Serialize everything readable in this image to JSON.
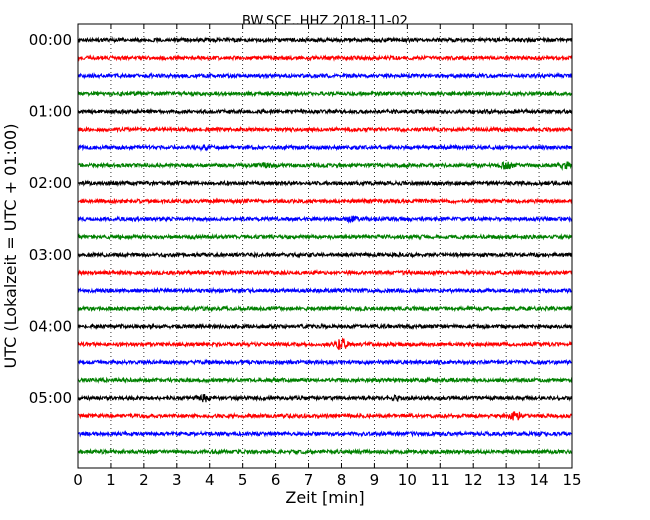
{
  "chart_data": {
    "type": "line",
    "title": "BW.SCE..HHZ 2018-11-02",
    "xlabel": "Zeit  [min]",
    "ylabel": "UTC (Lokalzeit = UTC + 01:00)",
    "xlim": [
      0,
      15
    ],
    "x_ticks": [
      "0",
      "1",
      "2",
      "3",
      "4",
      "5",
      "6",
      "7",
      "8",
      "9",
      "10",
      "11",
      "12",
      "13",
      "14",
      "15"
    ],
    "y_ticks": [
      "00:00",
      "01:00",
      "02:00",
      "03:00",
      "04:00",
      "05:00"
    ],
    "grid": "vertical dotted lines at each minute",
    "trace_colors": [
      "#000000",
      "#ff0000",
      "#0000ff",
      "#008000"
    ],
    "series": [
      {
        "start": "00:00",
        "events": []
      },
      {
        "start": "00:15",
        "events": []
      },
      {
        "start": "00:30",
        "events": []
      },
      {
        "start": "00:45",
        "events": []
      },
      {
        "start": "01:00",
        "events": []
      },
      {
        "start": "01:15",
        "events": []
      },
      {
        "start": "01:30",
        "events": [
          {
            "t": 3.8,
            "amp": 1.7
          }
        ]
      },
      {
        "start": "01:45",
        "events": [
          {
            "t": 5.7,
            "amp": 1.6
          },
          {
            "t": 13.0,
            "amp": 2.8
          },
          {
            "t": 14.8,
            "amp": 2.4
          }
        ]
      },
      {
        "start": "02:00",
        "events": []
      },
      {
        "start": "02:15",
        "events": []
      },
      {
        "start": "02:30",
        "events": [
          {
            "t": 8.3,
            "amp": 1.7
          }
        ]
      },
      {
        "start": "02:45",
        "events": []
      },
      {
        "start": "03:00",
        "events": []
      },
      {
        "start": "03:15",
        "events": []
      },
      {
        "start": "03:30",
        "events": []
      },
      {
        "start": "03:45",
        "events": []
      },
      {
        "start": "04:00",
        "events": []
      },
      {
        "start": "04:15",
        "events": [
          {
            "t": 8.0,
            "amp": 5.0
          }
        ]
      },
      {
        "start": "04:30",
        "events": []
      },
      {
        "start": "04:45",
        "events": []
      },
      {
        "start": "05:00",
        "events": [
          {
            "t": 3.8,
            "amp": 4.2
          },
          {
            "t": 9.7,
            "amp": 1.5
          }
        ]
      },
      {
        "start": "05:15",
        "events": [
          {
            "t": 13.3,
            "amp": 3.6
          }
        ]
      },
      {
        "start": "05:30",
        "events": []
      },
      {
        "start": "05:45",
        "events": []
      }
    ]
  }
}
